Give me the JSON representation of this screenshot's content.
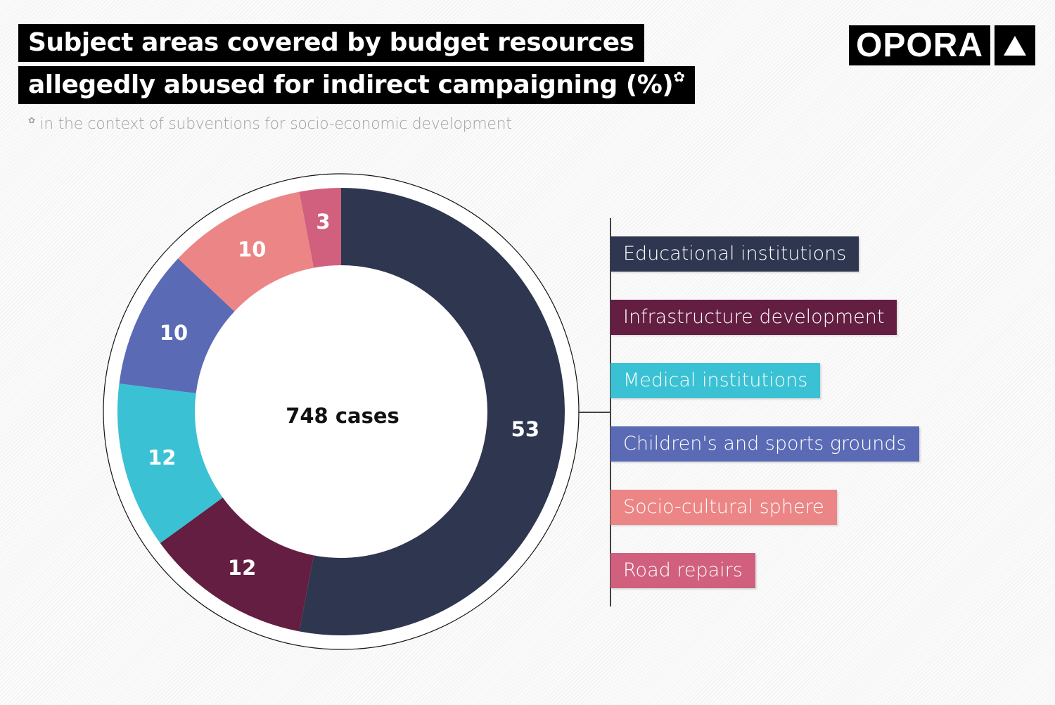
{
  "title_line1": "Subject areas covered by budget resources",
  "title_line2": "allegedly abused for indirect campaigning (%)",
  "title_mark": "✿",
  "footnote_mark": "✿",
  "footnote": "in the context of subventions for socio-economic development",
  "logo": "OPORA",
  "chart_data": {
    "type": "pie",
    "variant": "donut",
    "center_label": "748 cases",
    "categories": [
      "Educational institutions",
      "Infrastructure development",
      "Medical institutions",
      "Children's and sports grounds",
      "Socio-cultural sphere",
      "Road repairs"
    ],
    "values": [
      53,
      12,
      12,
      10,
      10,
      3
    ],
    "colors": [
      "#2e3650",
      "#641e42",
      "#3bc1d4",
      "#5a6ab4",
      "#ec8585",
      "#d0607e"
    ],
    "legend_placement": "right"
  }
}
